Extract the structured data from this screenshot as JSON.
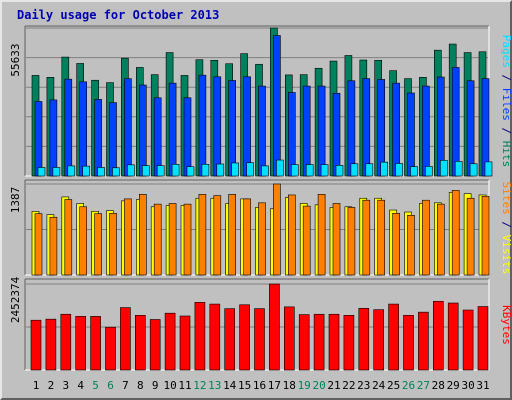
{
  "title": "Daily usage for October 2013",
  "colors": {
    "hits": "#00805c",
    "files": "#0040ff",
    "pages": "#00e0ff",
    "visits": "#ffff00",
    "sites": "#ff8000",
    "kbytes": "#ff0000",
    "weekend_label": "#00805c",
    "weekday_label": "#000000"
  },
  "chart_data": [
    {
      "type": "bar",
      "panel": "hits-files-pages",
      "ytick_max": "55633",
      "legend_labels": [
        "Pages",
        "/",
        "Files",
        "/",
        "Hits"
      ],
      "x": [
        1,
        2,
        3,
        4,
        5,
        6,
        7,
        8,
        9,
        10,
        11,
        12,
        13,
        14,
        15,
        16,
        17,
        18,
        19,
        20,
        21,
        22,
        23,
        24,
        25,
        26,
        27,
        28,
        29,
        30,
        31
      ],
      "series": [
        {
          "name": "Hits",
          "values": [
            37800,
            37100,
            44700,
            42300,
            36000,
            35100,
            44300,
            40800,
            38100,
            46400,
            37800,
            43700,
            43500,
            42200,
            46000,
            42000,
            55633,
            38000,
            38100,
            40500,
            43200,
            45300,
            43600,
            43500,
            39600,
            36600,
            37100,
            47300,
            49600,
            46400,
            46700
          ]
        },
        {
          "name": "Files",
          "values": [
            28000,
            28600,
            36400,
            35400,
            28800,
            27600,
            36600,
            34200,
            29400,
            34900,
            29400,
            37900,
            37300,
            35900,
            37300,
            33800,
            52800,
            31400,
            33800,
            33800,
            31100,
            35800,
            36600,
            36300,
            34900,
            31200,
            33800,
            37200,
            40800,
            35800,
            36600
          ]
        },
        {
          "name": "Pages",
          "values": [
            3200,
            3200,
            3800,
            3700,
            3200,
            3100,
            4200,
            3900,
            3900,
            4400,
            3500,
            4400,
            4500,
            4900,
            5000,
            3800,
            6000,
            4300,
            4300,
            4300,
            4000,
            4600,
            4600,
            5200,
            4700,
            3500,
            3600,
            5900,
            5500,
            4600,
            5300
          ]
        }
      ]
    },
    {
      "type": "bar",
      "panel": "visits-sites",
      "ytick_max": "1387",
      "legend_labels": [
        "Sites",
        "/",
        "Visits"
      ],
      "x": [
        1,
        2,
        3,
        4,
        5,
        6,
        7,
        8,
        9,
        10,
        11,
        12,
        13,
        14,
        15,
        16,
        17,
        18,
        19,
        20,
        21,
        22,
        23,
        24,
        25,
        26,
        27,
        28,
        29,
        30,
        31
      ],
      "series": [
        {
          "name": "Visits",
          "values": [
            970,
            920,
            1190,
            1090,
            970,
            980,
            1130,
            1150,
            1040,
            1060,
            1060,
            1170,
            1170,
            1090,
            1160,
            1030,
            1010,
            1180,
            1090,
            1070,
            1030,
            1040,
            1170,
            1170,
            990,
            960,
            1090,
            1100,
            1260,
            1240,
            1220
          ]
        },
        {
          "name": "Sites",
          "values": [
            935,
            880,
            1150,
            1040,
            935,
            940,
            1160,
            1230,
            1080,
            1090,
            1080,
            1230,
            1210,
            1230,
            1160,
            1100,
            1387,
            1220,
            1050,
            1230,
            1090,
            1030,
            1140,
            1140,
            940,
            910,
            1140,
            1080,
            1290,
            1170,
            1200
          ]
        }
      ]
    },
    {
      "type": "bar",
      "panel": "kbytes",
      "ytick_max": "2452374",
      "legend_labels": [
        "KBytes"
      ],
      "x": [
        1,
        2,
        3,
        4,
        5,
        6,
        7,
        8,
        9,
        10,
        11,
        12,
        13,
        14,
        15,
        16,
        17,
        18,
        19,
        20,
        21,
        22,
        23,
        24,
        25,
        26,
        27,
        28,
        29,
        30,
        31
      ],
      "series": [
        {
          "name": "KBytes",
          "values": [
            1420000,
            1450000,
            1590000,
            1530000,
            1530000,
            1220000,
            1780000,
            1560000,
            1440000,
            1620000,
            1540000,
            1930000,
            1880000,
            1750000,
            1860000,
            1750000,
            2452374,
            1800000,
            1580000,
            1590000,
            1590000,
            1560000,
            1760000,
            1720000,
            1880000,
            1560000,
            1650000,
            1960000,
            1910000,
            1710000,
            1810000
          ]
        }
      ]
    }
  ],
  "x_labels": [
    "1",
    "2",
    "3",
    "4",
    "5",
    "6",
    "7",
    "8",
    "9",
    "10",
    "11",
    "12",
    "13",
    "14",
    "15",
    "16",
    "17",
    "18",
    "19",
    "20",
    "21",
    "22",
    "23",
    "24",
    "25",
    "26",
    "27",
    "28",
    "29",
    "30",
    "31"
  ],
  "weekend_days": [
    5,
    6,
    12,
    13,
    19,
    20,
    26,
    27
  ]
}
